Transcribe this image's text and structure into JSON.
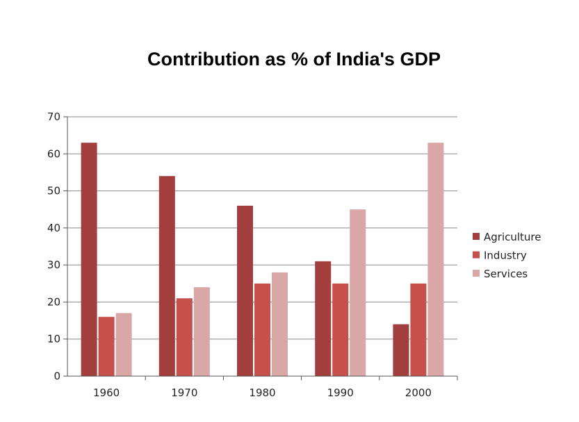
{
  "chart_data": {
    "type": "bar",
    "title": "Contribution as % of India's GDP",
    "xlabel": "",
    "ylabel": "",
    "categories": [
      "1960",
      "1970",
      "1980",
      "1990",
      "2000"
    ],
    "series": [
      {
        "name": "Agriculture",
        "color": "#a33e3e",
        "values": [
          63,
          54,
          46,
          31,
          14
        ]
      },
      {
        "name": "Industry",
        "color": "#c5504c",
        "values": [
          16,
          21,
          25,
          25,
          25
        ]
      },
      {
        "name": "Services",
        "color": "#d9a8a6",
        "values": [
          17,
          24,
          28,
          45,
          63
        ]
      }
    ],
    "ylim": [
      0,
      70
    ],
    "yticks": [
      0,
      10,
      20,
      30,
      40,
      50,
      60,
      70
    ],
    "grid": true,
    "legend_position": "right"
  }
}
